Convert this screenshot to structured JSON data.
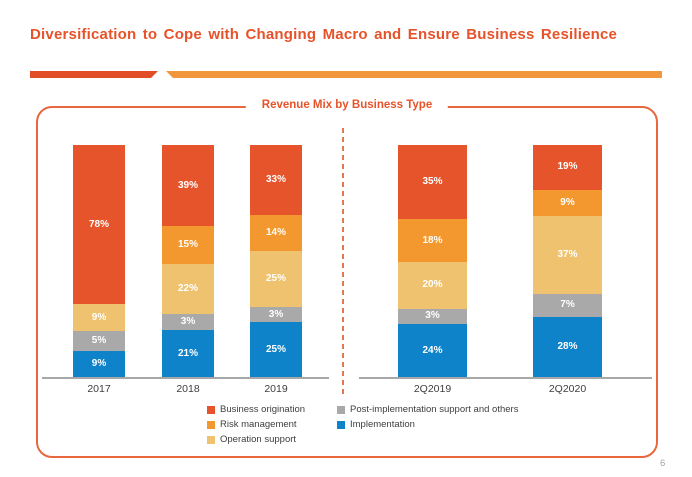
{
  "slide": {
    "title": "Diversification to Cope with Changing Macro and Ensure Business Resilience",
    "page_number": "6"
  },
  "colors": {
    "accent": "#E6532A",
    "divider_left": "#E14E25",
    "divider_right": "#F0963B",
    "box_border": "#E8673C",
    "separator": "#E07850",
    "axis_line": "#A8A8A8",
    "text_dark": "#3E3E3E",
    "page_number": "#A3A3A3"
  },
  "chart_data": {
    "type": "bar",
    "stacked": true,
    "value_unit": "%",
    "title": "Revenue Mix by Business Type",
    "categories": [
      "2017",
      "2018",
      "2019",
      "2Q2019",
      "2Q2020"
    ],
    "category_groups": {
      "annual": [
        "2017",
        "2018",
        "2019"
      ],
      "quarterly": [
        "2Q2019",
        "2Q2020"
      ]
    },
    "labels_format": "{value}%",
    "ylim": [
      0,
      100
    ],
    "grid": false,
    "series": [
      {
        "name": "Business origination",
        "color": "#E6542B",
        "values": [
          78,
          39,
          33,
          35,
          19
        ]
      },
      {
        "name": "Risk management",
        "color": "#F3982E",
        "values": [
          0,
          15,
          14,
          18,
          9
        ]
      },
      {
        "name": "Operation support",
        "color": "#EEC26F",
        "values": [
          9,
          22,
          25,
          20,
          37
        ]
      },
      {
        "name": "Post-implementation support and others",
        "color": "#A9A9A9",
        "values": [
          5,
          3,
          3,
          3,
          7
        ]
      },
      {
        "name": "Implementation",
        "color": "#0F83C9",
        "values": [
          9,
          21,
          25,
          24,
          28
        ]
      }
    ],
    "legend": {
      "position": "bottom",
      "columns": [
        [
          "Business origination",
          "Risk management",
          "Operation support"
        ],
        [
          "Post-implementation support and others",
          "Implementation"
        ]
      ]
    }
  }
}
